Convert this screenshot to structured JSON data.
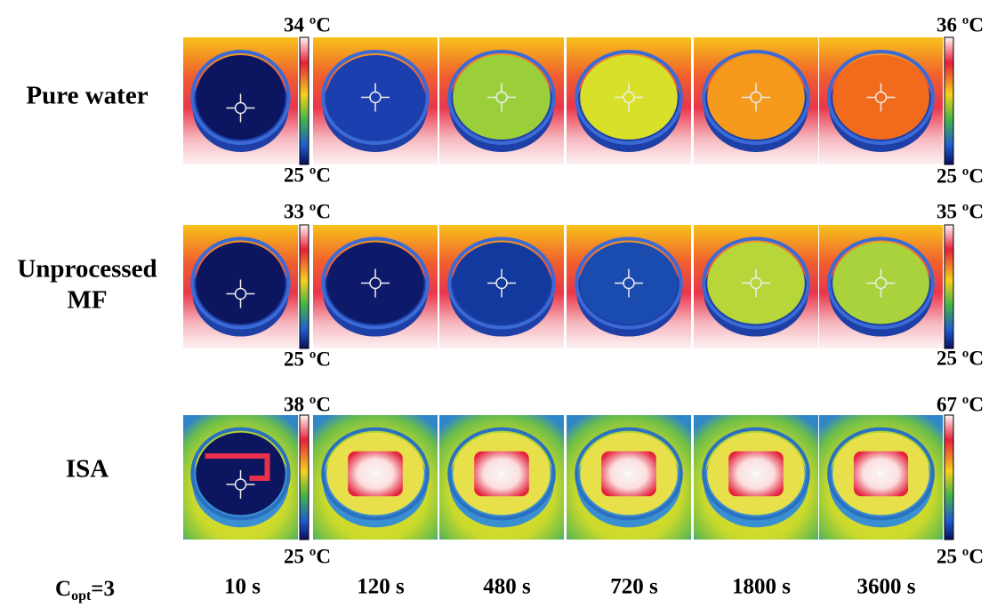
{
  "rows": [
    {
      "label": [
        "Pure water"
      ],
      "scale_left": {
        "max": "34 ºC",
        "min": "25 ºC"
      },
      "scale_right": {
        "max": "36 ºC",
        "min": "25 ºC"
      }
    },
    {
      "label": [
        "Unprocessed",
        "MF"
      ],
      "scale_left": {
        "max": "33 ºC",
        "min": "25 ºC"
      },
      "scale_right": {
        "max": "35 ºC",
        "min": "25 ºC"
      }
    },
    {
      "label": [
        "ISA"
      ],
      "scale_left": {
        "max": "38 ºC",
        "min": "25 ºC"
      },
      "scale_right": {
        "max": "67 ºC",
        "min": "25 ºC"
      }
    }
  ],
  "footer": {
    "condition": {
      "symbol": "C",
      "subscript": "opt",
      "rest": "=3"
    },
    "times": [
      "10 s",
      "120 s",
      "480 s",
      "720 s",
      "1800 s",
      "3600 s"
    ]
  }
}
